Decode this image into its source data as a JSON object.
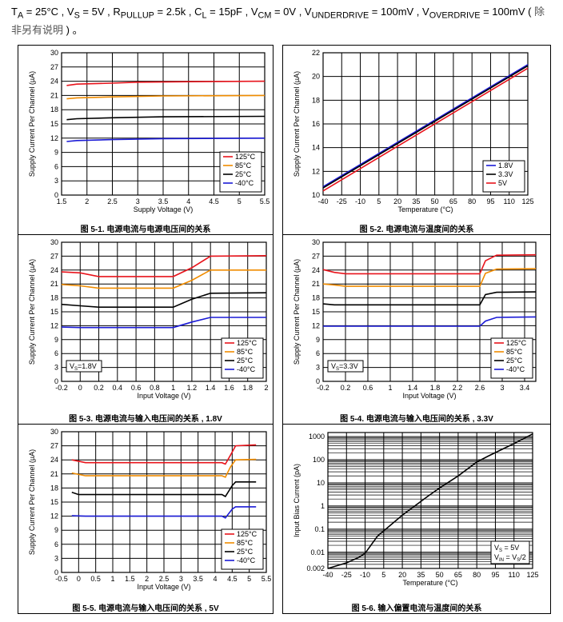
{
  "conditions": {
    "ta": "T",
    "ta_sub": "A",
    "ta_val": " = 25°C , ",
    "vs": "V",
    "vs_sub": "S",
    "vs_val": " = 5V , ",
    "rp": "R",
    "rp_sub": "PULLUP",
    "rp_val": " = 2.5k , ",
    "cl": "C",
    "cl_sub": "L",
    "cl_val": " = 15pF , ",
    "vcm": "V",
    "vcm_sub": "CM",
    "vcm_val": " = 0V , ",
    "vud": "V",
    "vud_sub": "UNDERDRIVE",
    "vud_val": " = 100mV , ",
    "vod": "V",
    "vod_sub": "OVERDRIVE",
    "vod_val": " = 100mV ( ",
    "note": "除非另有说明",
    "end": " ) 。"
  },
  "colors": {
    "125C": "#e8141c",
    "85C": "#f08c00",
    "25C": "#000000",
    "-40C": "#1a1ad6",
    "1.8V": "#1a1ad6",
    "3.3V": "#000000",
    "5V": "#e8141c"
  },
  "chart_data": [
    {
      "id": "fig1",
      "type": "line",
      "caption": "图 5-1. 电源电流与电源电压间的关系",
      "xlabel": "Supply Voltage (V)",
      "ylabel": "Supply Current Per Channel (µA)",
      "xlim": [
        1.5,
        5.5
      ],
      "ylim": [
        0,
        30
      ],
      "xticks": [
        "1.5",
        "2",
        "2.5",
        "3",
        "3.5",
        "4",
        "4.5",
        "5",
        "5.5"
      ],
      "yticks": [
        "0",
        "3",
        "6",
        "9",
        "12",
        "15",
        "18",
        "21",
        "24",
        "27",
        "30"
      ],
      "legend": {
        "position": "bottom-right"
      },
      "series": [
        {
          "name": "125°C",
          "color_key": "125C",
          "points": [
            [
              1.6,
              23.1
            ],
            [
              1.8,
              23.4
            ],
            [
              2.5,
              23.6
            ],
            [
              3,
              23.8
            ],
            [
              4,
              23.9
            ],
            [
              5.5,
              24.0
            ]
          ]
        },
        {
          "name": "85°C",
          "color_key": "85C",
          "points": [
            [
              1.6,
              20.3
            ],
            [
              1.8,
              20.5
            ],
            [
              2.5,
              20.7
            ],
            [
              3.5,
              20.9
            ],
            [
              5.5,
              21.0
            ]
          ]
        },
        {
          "name": "25°C",
          "color_key": "25C",
          "points": [
            [
              1.6,
              15.9
            ],
            [
              1.8,
              16.1
            ],
            [
              2.5,
              16.3
            ],
            [
              3.5,
              16.5
            ],
            [
              5.5,
              16.6
            ]
          ]
        },
        {
          "name": "-40°C",
          "color_key": "-40C",
          "points": [
            [
              1.6,
              11.3
            ],
            [
              1.8,
              11.5
            ],
            [
              2.5,
              11.7
            ],
            [
              3.5,
              11.9
            ],
            [
              5.5,
              12.0
            ]
          ]
        }
      ]
    },
    {
      "id": "fig2",
      "type": "line",
      "caption": "图 5-2. 电源电流与温度间的关系",
      "xlabel": "Temperature (°C)",
      "ylabel": "Supply Current Per Channel (µA)",
      "xlim": [
        -40,
        125
      ],
      "ylim": [
        10,
        22
      ],
      "xticks": [
        "-40",
        "-25",
        "-10",
        "5",
        "20",
        "35",
        "50",
        "65",
        "80",
        "95",
        "110",
        "125"
      ],
      "yticks": [
        "10",
        "12",
        "14",
        "16",
        "18",
        "20",
        "22"
      ],
      "legend": {
        "position": "bottom-right"
      },
      "series": [
        {
          "name": "1.8V",
          "color_key": "1.8V",
          "points": [
            [
              -40,
              10.7
            ],
            [
              125,
              21.0
            ]
          ]
        },
        {
          "name": "3.3V",
          "color_key": "3.3V",
          "points": [
            [
              -40,
              10.6
            ],
            [
              125,
              20.9
            ]
          ]
        },
        {
          "name": "5V",
          "color_key": "5V",
          "points": [
            [
              -40,
              10.35
            ],
            [
              125,
              20.7
            ]
          ]
        }
      ]
    },
    {
      "id": "fig3",
      "type": "line",
      "caption": "图 5-3. 电源电流与输入电压间的关系 , 1.8V",
      "xlabel": "Input Voltage (V)",
      "ylabel": "Supply Current Per Channel (µA)",
      "annotation": "V",
      "annotation_sub": "S",
      "annotation_val": "=1.8V",
      "xlim": [
        -0.2,
        2
      ],
      "ylim": [
        0,
        30
      ],
      "xticks": [
        "-0.2",
        "0",
        "0.2",
        "0.4",
        "0.6",
        "0.8",
        "1",
        "1.2",
        "1.4",
        "1.6",
        "1.8",
        "2"
      ],
      "yticks": [
        "0",
        "3",
        "6",
        "9",
        "12",
        "15",
        "18",
        "21",
        "24",
        "27",
        "30"
      ],
      "legend": {
        "position": "bottom-right"
      },
      "series": [
        {
          "name": "125°C",
          "color_key": "125C",
          "points": [
            [
              -0.2,
              23.6
            ],
            [
              0,
              23.4
            ],
            [
              0.2,
              22.6
            ],
            [
              1.0,
              22.6
            ],
            [
              1.2,
              24.5
            ],
            [
              1.4,
              27.0
            ],
            [
              2,
              27.1
            ]
          ]
        },
        {
          "name": "85°C",
          "color_key": "85C",
          "points": [
            [
              -0.2,
              20.9
            ],
            [
              0,
              20.6
            ],
            [
              0.2,
              20.1
            ],
            [
              1.0,
              20.1
            ],
            [
              1.2,
              21.8
            ],
            [
              1.4,
              24.0
            ],
            [
              2,
              24.0
            ]
          ]
        },
        {
          "name": "25°C",
          "color_key": "25C",
          "points": [
            [
              -0.2,
              16.6
            ],
            [
              0,
              16.3
            ],
            [
              0.2,
              16.0
            ],
            [
              1.0,
              16.0
            ],
            [
              1.2,
              17.7
            ],
            [
              1.4,
              19.0
            ],
            [
              2,
              19.1
            ]
          ]
        },
        {
          "name": "-40°C",
          "color_key": "-40C",
          "points": [
            [
              -0.2,
              11.7
            ],
            [
              0,
              11.6
            ],
            [
              0.2,
              11.6
            ],
            [
              1.0,
              11.6
            ],
            [
              1.2,
              12.8
            ],
            [
              1.4,
              13.8
            ],
            [
              2,
              13.8
            ]
          ]
        }
      ]
    },
    {
      "id": "fig4",
      "type": "line",
      "caption": "图 5-4. 电源电流与输入电压间的关系 , 3.3V",
      "xlabel": "Input Voltage (V)",
      "ylabel": "Supply Current Per Channel (µA)",
      "annotation": "V",
      "annotation_sub": "S",
      "annotation_val": "=3.3V",
      "xlim": [
        -0.2,
        3.6
      ],
      "ylim": [
        0,
        30
      ],
      "xticks": [
        "-0.2",
        "0.2",
        "0.6",
        "1",
        "1.4",
        "1.8",
        "2.2",
        "2.6",
        "3",
        "3.4"
      ],
      "yticks": [
        "0",
        "3",
        "6",
        "9",
        "12",
        "15",
        "18",
        "21",
        "24",
        "27",
        "30"
      ],
      "legend": {
        "position": "bottom-right"
      },
      "series": [
        {
          "name": "125°C",
          "color_key": "125C",
          "points": [
            [
              -0.2,
              24.1
            ],
            [
              0,
              23.5
            ],
            [
              0.2,
              23.2
            ],
            [
              2.6,
              23.2
            ],
            [
              2.7,
              26.0
            ],
            [
              2.9,
              27.2
            ],
            [
              3.6,
              27.3
            ]
          ]
        },
        {
          "name": "85°C",
          "color_key": "85C",
          "points": [
            [
              -0.2,
              21.0
            ],
            [
              0,
              20.8
            ],
            [
              0.2,
              20.5
            ],
            [
              2.6,
              20.5
            ],
            [
              2.7,
              23.3
            ],
            [
              2.9,
              24.2
            ],
            [
              3.6,
              24.3
            ]
          ]
        },
        {
          "name": "25°C",
          "color_key": "25C",
          "points": [
            [
              -0.2,
              16.7
            ],
            [
              0,
              16.5
            ],
            [
              0.2,
              16.5
            ],
            [
              2.6,
              16.5
            ],
            [
              2.7,
              18.7
            ],
            [
              2.9,
              19.2
            ],
            [
              3.6,
              19.3
            ]
          ]
        },
        {
          "name": "-40°C",
          "color_key": "-40C",
          "points": [
            [
              -0.2,
              11.9
            ],
            [
              0,
              11.9
            ],
            [
              0.2,
              11.9
            ],
            [
              2.6,
              11.9
            ],
            [
              2.7,
              13.0
            ],
            [
              2.9,
              13.8
            ],
            [
              3.6,
              13.9
            ]
          ]
        }
      ]
    },
    {
      "id": "fig5",
      "type": "line",
      "caption": "图 5-5. 电源电流与输入电压间的关系 , 5V",
      "xlabel": "Input Voltage (V)",
      "ylabel": "Supply Current Per Channel (µA)",
      "xlim": [
        -0.5,
        5.5
      ],
      "ylim": [
        0,
        30
      ],
      "xticks": [
        "-0.5",
        "0",
        "0.5",
        "1",
        "1.5",
        "2",
        "2.5",
        "3",
        "3.5",
        "4",
        "4.5",
        "5",
        "5.5"
      ],
      "yticks": [
        "0",
        "3",
        "6",
        "9",
        "12",
        "15",
        "18",
        "21",
        "24",
        "27",
        "30"
      ],
      "legend": {
        "position": "bottom-right"
      },
      "series": [
        {
          "name": "125°C",
          "color_key": "125C",
          "points": [
            [
              -0.2,
              24.0
            ],
            [
              0.2,
              23.4
            ],
            [
              4.2,
              23.4
            ],
            [
              4.3,
              23.1
            ],
            [
              4.45,
              25.0
            ],
            [
              4.6,
              27.0
            ],
            [
              5.2,
              27.2
            ]
          ]
        },
        {
          "name": "85°C",
          "color_key": "85C",
          "points": [
            [
              -0.2,
              21.2
            ],
            [
              0.2,
              20.6
            ],
            [
              4.2,
              20.6
            ],
            [
              4.3,
              20.3
            ],
            [
              4.45,
              22.5
            ],
            [
              4.6,
              24.0
            ],
            [
              5.2,
              24.1
            ]
          ]
        },
        {
          "name": "25°C",
          "color_key": "25C",
          "points": [
            [
              -0.2,
              17.1
            ],
            [
              0,
              16.6
            ],
            [
              4.2,
              16.6
            ],
            [
              4.3,
              16.2
            ],
            [
              4.5,
              18.5
            ],
            [
              4.6,
              19.3
            ],
            [
              5.2,
              19.3
            ]
          ]
        },
        {
          "name": "-40°C",
          "color_key": "-40C",
          "points": [
            [
              -0.2,
              12.1
            ],
            [
              0.2,
              12.0
            ],
            [
              4.2,
              12.0
            ],
            [
              4.3,
              11.6
            ],
            [
              4.5,
              13.5
            ],
            [
              4.6,
              14.0
            ],
            [
              5.2,
              14.0
            ]
          ]
        }
      ]
    },
    {
      "id": "fig6",
      "type": "line",
      "scale_y": "log",
      "caption": "图 5-6. 输入偏置电流与温度间的关系",
      "xlabel": "Temperature (°C)",
      "ylabel": "Input Bias Current (pA)",
      "legend_lines": [
        "V",
        "S",
        " = 5V",
        "V",
        "IN",
        " = V",
        "S",
        "/2"
      ],
      "xlim": [
        -40,
        125
      ],
      "ylim": [
        0.002,
        1500
      ],
      "xticks": [
        "-40",
        "-25",
        "-10",
        "5",
        "20",
        "35",
        "50",
        "65",
        "80",
        "95",
        "110",
        "125"
      ],
      "yticks": [
        "0.002",
        "0.01",
        "0.1",
        "1",
        "10",
        "100",
        "1000"
      ],
      "series": [
        {
          "name": "",
          "color_key": "25C",
          "points": [
            [
              -40,
              0.002
            ],
            [
              -25,
              0.0035
            ],
            [
              -15,
              0.006
            ],
            [
              -10,
              0.009
            ],
            [
              0,
              0.05
            ],
            [
              20,
              0.4
            ],
            [
              40,
              2.5
            ],
            [
              50,
              6
            ],
            [
              65,
              20
            ],
            [
              80,
              80
            ],
            [
              90,
              150
            ],
            [
              110,
              500
            ],
            [
              125,
              1300
            ]
          ]
        }
      ]
    }
  ]
}
